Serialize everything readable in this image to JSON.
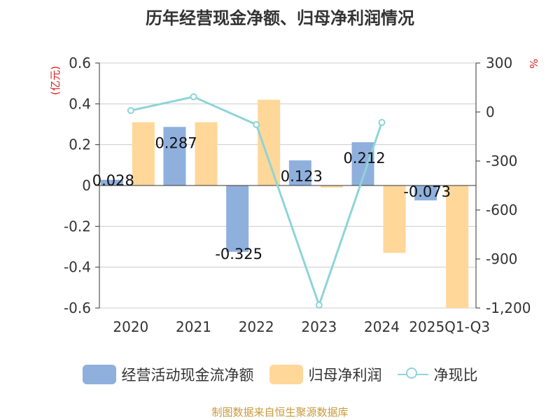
{
  "chart_data": {
    "type": "bar",
    "title": "历年经营现金净额、归母净利润情况",
    "categories": [
      "2020",
      "2021",
      "2022",
      "2023",
      "2024",
      "2025Q1-Q3"
    ],
    "series": [
      {
        "name": "经营活动现金流净额",
        "type": "bar",
        "axis": "left",
        "color": "#8fb0dd",
        "values": [
          0.028,
          0.287,
          -0.325,
          0.123,
          0.212,
          -0.073
        ],
        "labels": [
          "0.028",
          "0.287",
          "-0.325",
          "0.123",
          "0.212",
          "-0.073"
        ]
      },
      {
        "name": "归母净利润",
        "type": "bar",
        "axis": "left",
        "color": "#ffd799",
        "values": [
          0.31,
          0.31,
          0.42,
          -0.01,
          -0.33,
          -0.6
        ]
      },
      {
        "name": "净现比",
        "type": "line",
        "axis": "right",
        "color": "#8ed4d9",
        "values": [
          9,
          93,
          -77,
          -1182,
          -64,
          null
        ]
      }
    ],
    "y_left": {
      "label": "(亿元)",
      "ylim": [
        -0.6,
        0.6
      ],
      "ticks": [
        0.6,
        0.4,
        0.2,
        0,
        -0.2,
        -0.4,
        -0.6
      ],
      "tick_labels": [
        "0.6",
        "0.4",
        "0.2",
        "0",
        "-0.2",
        "-0.4",
        "-0.6"
      ]
    },
    "y_right": {
      "label": "%",
      "ylim": [
        -1200,
        300
      ],
      "ticks": [
        300,
        0,
        -300,
        -600,
        -900,
        -1200
      ],
      "tick_labels": [
        "300",
        "0",
        "-300",
        "-600",
        "-900",
        "-1,200"
      ]
    },
    "legend_position": "bottom"
  },
  "source": "制图数据来自恒生聚源数据库"
}
